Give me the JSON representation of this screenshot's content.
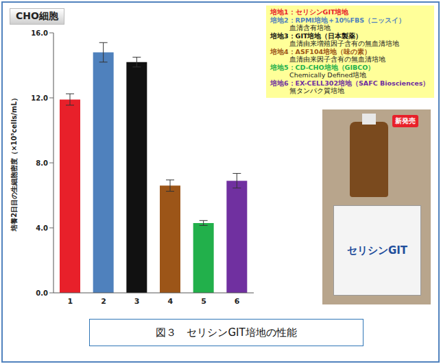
{
  "chart_data": {
    "type": "bar",
    "title": "CHO細胞",
    "y_label": "培養2日目の生細胞密度（×10⁵cells/mL）",
    "categories": [
      "1",
      "2",
      "3",
      "4",
      "5",
      "6"
    ],
    "values": [
      11.9,
      14.8,
      14.2,
      6.6,
      4.3,
      6.9
    ],
    "errors": [
      0.35,
      0.6,
      0.3,
      0.35,
      0.15,
      0.45
    ],
    "colors": [
      "#e8202a",
      "#4f81bd",
      "#111111",
      "#9c5518",
      "#22b04b",
      "#7030a0"
    ],
    "ylim": [
      0,
      16
    ],
    "yticks": [
      {
        "value": 0,
        "label": "0.0"
      },
      {
        "value": 4,
        "label": "4.0"
      },
      {
        "value": 8,
        "label": "8.0"
      },
      {
        "value": 12,
        "label": "12.0"
      },
      {
        "value": 16,
        "label": "16.0"
      }
    ],
    "grid": false
  },
  "media_legend": [
    {
      "label": "培地1：セリシンGIT培地"
    },
    {
      "label": "培地2：RPMI培地＋10%FBS（ニッスイ）",
      "note": "血清含有培地"
    },
    {
      "label": "培地3：GIT培地（日本製薬）",
      "note": "血清由来増殖因子含有の無血清培地"
    },
    {
      "label": "培地4：ASF104培地（味の素）",
      "note": "血清由来因子含有の無血清培地"
    },
    {
      "label": "培地5：CD-CHO培地（GIBCO）",
      "note": "Chemically Defined培地"
    },
    {
      "label": "培地6：EX-CELL302培地（SAFC Biosciences）",
      "note": "無タンパク質培地"
    }
  ],
  "product_image": {
    "badge": "新発売",
    "name": "セリシンGIT"
  },
  "caption": "図３　セリシンGIT培地の性能"
}
